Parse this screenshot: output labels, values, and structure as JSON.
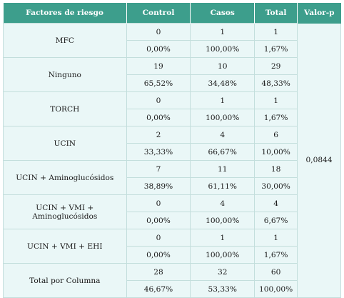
{
  "table": {
    "headers": [
      "Factores de riesgo",
      "Control",
      "Casos",
      "Total",
      "Valor-p"
    ],
    "p_value": "0,0844",
    "rows": [
      {
        "factor": "MFC",
        "counts": [
          "0",
          "1",
          "1"
        ],
        "percents": [
          "0,00%",
          "100,00%",
          "1,67%"
        ]
      },
      {
        "factor": "Ninguno",
        "counts": [
          "19",
          "10",
          "29"
        ],
        "percents": [
          "65,52%",
          "34,48%",
          "48,33%"
        ]
      },
      {
        "factor": "TORCH",
        "counts": [
          "0",
          "1",
          "1"
        ],
        "percents": [
          "0,00%",
          "100,00%",
          "1,67%"
        ]
      },
      {
        "factor": "UCIN",
        "counts": [
          "2",
          "4",
          "6"
        ],
        "percents": [
          "33,33%",
          "66,67%",
          "10,00%"
        ]
      },
      {
        "factor": "UCIN + Aminoglucósidos",
        "counts": [
          "7",
          "11",
          "18"
        ],
        "percents": [
          "38,89%",
          "61,11%",
          "30,00%"
        ]
      },
      {
        "factor": "UCIN + VMI + Aminoglucósidos",
        "counts": [
          "0",
          "4",
          "4"
        ],
        "percents": [
          "0,00%",
          "100,00%",
          "6,67%"
        ]
      },
      {
        "factor": "UCIN + VMI + EHI",
        "counts": [
          "0",
          "1",
          "1"
        ],
        "percents": [
          "0,00%",
          "100,00%",
          "1,67%"
        ]
      },
      {
        "factor": "Total por Columna",
        "counts": [
          "28",
          "32",
          "60"
        ],
        "percents": [
          "46,67%",
          "53,33%",
          "100,00%"
        ]
      }
    ]
  }
}
